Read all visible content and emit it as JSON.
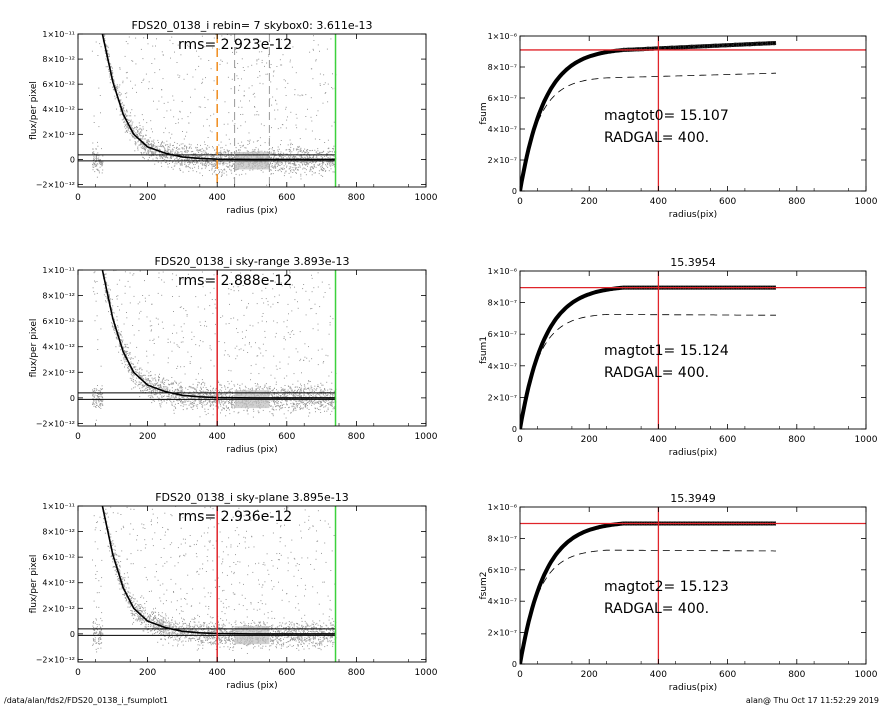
{
  "footer": {
    "path": "/data/alan/fds2/FDS20_0138_i_fsumplot1",
    "stamp": "alan@  Thu Oct 17 11:52:29 2019"
  },
  "colors": {
    "scatter": "#9a9a9a",
    "curve": "#000000",
    "red": "#e0242a",
    "green": "#3cd13c",
    "orange": "#f08c1e",
    "grey_band": "#bdbdbd"
  },
  "chart_data": [
    {
      "type": "scatter",
      "title": "FDS20_0138_i rebin= 7    skybox0:  3.611e-13",
      "annotation": "rms= 2.923e-12",
      "xlabel": "radius (pix)",
      "ylabel": "flux/per pixel",
      "xlim": [
        0,
        1000
      ],
      "ylim": [
        -2.2e-12,
        1e-11
      ],
      "xticks": [
        0,
        200,
        400,
        600,
        800,
        1000
      ],
      "yticks": [
        1e-11,
        8e-12,
        6e-12,
        4e-12,
        2e-12,
        0,
        -2e-12
      ],
      "ytick_labels": [
        "1×10⁻¹¹",
        "8×10⁻¹²",
        "6×10⁻¹²",
        "4×10⁻¹²",
        "2×10⁻¹²",
        "0",
        "−2×10⁻¹²"
      ],
      "hlines": [
        3.611e-13,
        -1.2e-13
      ],
      "vlines": [
        {
          "x": 400,
          "color": "orange",
          "dashed": true
        },
        {
          "x": 740,
          "color": "green",
          "dashed": false
        }
      ],
      "dashed_grey_vlines": [
        450,
        550
      ],
      "sky_band": [
        450,
        550
      ],
      "profile": [
        [
          70,
          1e-11
        ],
        [
          100,
          6.2e-12
        ],
        [
          130,
          3.6e-12
        ],
        [
          160,
          2e-12
        ],
        [
          200,
          1e-12
        ],
        [
          250,
          5e-13
        ],
        [
          300,
          2e-13
        ],
        [
          350,
          8e-14
        ],
        [
          400,
          2e-14
        ],
        [
          500,
          0
        ],
        [
          600,
          0
        ],
        [
          740,
          0
        ]
      ],
      "scatter_range": [
        0,
        740
      ]
    },
    {
      "type": "line",
      "title": "",
      "annotation_lines": [
        "magtot0=  15.107",
        "RADGAL=    400."
      ],
      "xlabel": "radius(pix)",
      "ylabel": "fsum",
      "xlim": [
        0,
        1000
      ],
      "ylim": [
        0,
        1e-06
      ],
      "xticks": [
        0,
        200,
        400,
        600,
        800,
        1000
      ],
      "yticks": [
        1e-06,
        8e-07,
        6e-07,
        4e-07,
        2e-07,
        0
      ],
      "ytick_labels": [
        "1×10⁻⁶",
        "8×10⁻⁷",
        "6×10⁻⁷",
        "4×10⁻⁷",
        "2×10⁻⁷",
        "0"
      ],
      "hline": 9.1e-07,
      "vline": 400,
      "curve_plateau": 9.1e-07,
      "tail_end": 9.55e-07,
      "dashed_plateau": 7.3e-07,
      "dashed_tail_end": 7.6e-07
    },
    {
      "type": "scatter",
      "title": "FDS20_0138_i sky-range  3.893e-13",
      "annotation": "rms= 2.888e-12",
      "xlabel": "radius (pix)",
      "ylabel": "flux/per pixel",
      "xlim": [
        0,
        1000
      ],
      "ylim": [
        -2.2e-12,
        1e-11
      ],
      "xticks": [
        0,
        200,
        400,
        600,
        800,
        1000
      ],
      "yticks": [
        1e-11,
        8e-12,
        6e-12,
        4e-12,
        2e-12,
        0,
        -2e-12
      ],
      "ytick_labels": [
        "1×10⁻¹¹",
        "8×10⁻¹²",
        "6×10⁻¹²",
        "4×10⁻¹²",
        "2×10⁻¹²",
        "0",
        "−2×10⁻¹²"
      ],
      "hlines": [
        3.893e-13,
        -1.2e-13
      ],
      "vlines": [
        {
          "x": 400,
          "color": "red",
          "dashed": false
        },
        {
          "x": 740,
          "color": "green",
          "dashed": false
        }
      ],
      "dashed_grey_vlines": [],
      "sky_band": [
        450,
        550
      ],
      "profile": [
        [
          70,
          1e-11
        ],
        [
          100,
          6.2e-12
        ],
        [
          130,
          3.6e-12
        ],
        [
          160,
          2e-12
        ],
        [
          200,
          1e-12
        ],
        [
          250,
          5e-13
        ],
        [
          300,
          2e-13
        ],
        [
          350,
          8e-14
        ],
        [
          400,
          2e-14
        ],
        [
          500,
          0
        ],
        [
          600,
          0
        ],
        [
          740,
          0
        ]
      ],
      "scatter_range": [
        0,
        740
      ]
    },
    {
      "type": "line",
      "title": "15.3954",
      "annotation_lines": [
        "magtot1=  15.124",
        "RADGAL=    400."
      ],
      "xlabel": "radius(pix)",
      "ylabel": "fsum1",
      "xlim": [
        0,
        1000
      ],
      "ylim": [
        0,
        1e-06
      ],
      "xticks": [
        0,
        200,
        400,
        600,
        800,
        1000
      ],
      "yticks": [
        1e-06,
        8e-07,
        6e-07,
        4e-07,
        2e-07,
        0
      ],
      "ytick_labels": [
        "1×10⁻⁶",
        "8×10⁻⁷",
        "6×10⁻⁷",
        "4×10⁻⁷",
        "2×10⁻⁷",
        "0"
      ],
      "hline": 8.95e-07,
      "vline": 400,
      "curve_plateau": 8.95e-07,
      "tail_end": 8.95e-07,
      "dashed_plateau": 7.25e-07,
      "dashed_tail_end": 7.2e-07
    },
    {
      "type": "scatter",
      "title": "FDS20_0138_i sky-plane  3.895e-13",
      "annotation": "rms= 2.936e-12",
      "xlabel": "radius (pix)",
      "ylabel": "flux/per pixel",
      "xlim": [
        0,
        1000
      ],
      "ylim": [
        -2.2e-12,
        1e-11
      ],
      "xticks": [
        0,
        200,
        400,
        600,
        800,
        1000
      ],
      "yticks": [
        1e-11,
        8e-12,
        6e-12,
        4e-12,
        2e-12,
        0,
        -2e-12
      ],
      "ytick_labels": [
        "1×10⁻¹¹",
        "8×10⁻¹²",
        "6×10⁻¹²",
        "4×10⁻¹²",
        "2×10⁻¹²",
        "0",
        "−2×10⁻¹²"
      ],
      "hlines": [
        3.895e-13,
        -1.2e-13
      ],
      "vlines": [
        {
          "x": 400,
          "color": "red",
          "dashed": false
        },
        {
          "x": 740,
          "color": "green",
          "dashed": false
        }
      ],
      "dashed_grey_vlines": [],
      "sky_band": [
        450,
        550
      ],
      "profile": [
        [
          70,
          1e-11
        ],
        [
          100,
          6.2e-12
        ],
        [
          130,
          3.6e-12
        ],
        [
          160,
          2e-12
        ],
        [
          200,
          1e-12
        ],
        [
          250,
          5e-13
        ],
        [
          300,
          2e-13
        ],
        [
          350,
          8e-14
        ],
        [
          400,
          2e-14
        ],
        [
          500,
          0
        ],
        [
          600,
          0
        ],
        [
          740,
          0
        ]
      ],
      "scatter_range": [
        0,
        740
      ]
    },
    {
      "type": "line",
      "title": "15.3949",
      "annotation_lines": [
        "magtot2=  15.123",
        "RADGAL=    400."
      ],
      "xlabel": "radius(pix)",
      "ylabel": "fsum2",
      "xlim": [
        0,
        1000
      ],
      "ylim": [
        0,
        1e-06
      ],
      "xticks": [
        0,
        200,
        400,
        600,
        800,
        1000
      ],
      "yticks": [
        1e-06,
        8e-07,
        6e-07,
        4e-07,
        2e-07,
        0
      ],
      "ytick_labels": [
        "1×10⁻⁶",
        "8×10⁻⁷",
        "6×10⁻⁷",
        "4×10⁻⁷",
        "2×10⁻⁷",
        "0"
      ],
      "hline": 8.95e-07,
      "vline": 400,
      "curve_plateau": 8.95e-07,
      "tail_end": 8.95e-07,
      "dashed_plateau": 7.25e-07,
      "dashed_tail_end": 7.2e-07
    }
  ]
}
